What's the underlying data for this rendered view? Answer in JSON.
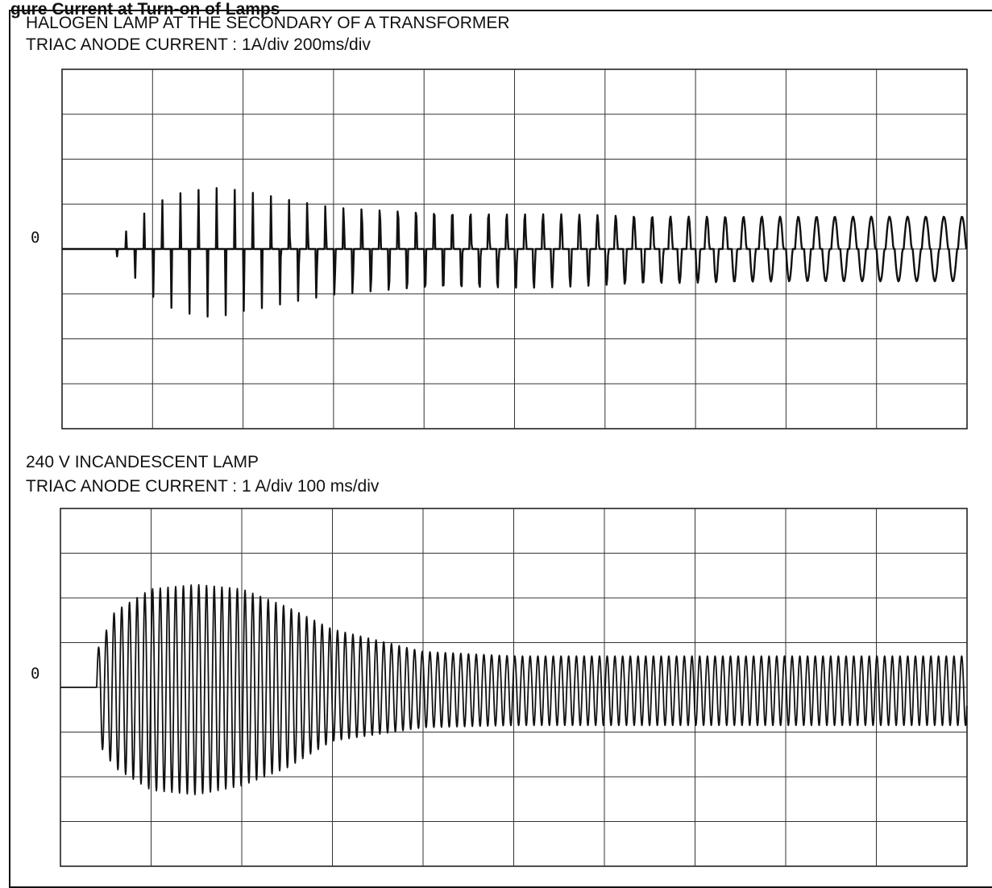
{
  "figure": {
    "heading_fragment": "gure  Current at Turn-on of Lamps"
  },
  "panels": [
    {
      "title_line1": "HALOGEN LAMP AT THE SECONDARY OF A TRANSFORMER",
      "title_line2": "TRIAC ANODE CURRENT : 1A/div 200ms/div",
      "zero_label": "0"
    },
    {
      "title_line1": "240 V INCANDESCENT LAMP",
      "title_line2": "TRIAC ANODE CURRENT : 1 A/div 100 ms/div",
      "zero_label": "0"
    }
  ],
  "chart_data": [
    {
      "type": "line",
      "title": "HALOGEN LAMP AT THE SECONDARY OF A TRANSFORMER",
      "subtitle": "TRIAC ANODE CURRENT : 1A/div 200ms/div",
      "xlabel": "",
      "ylabel": "",
      "x_unit": "ms",
      "y_unit": "A",
      "xlim": [
        0,
        2000
      ],
      "ylim": [
        -4,
        4
      ],
      "x_divisions": 10,
      "y_divisions": 8,
      "grid": true,
      "trace_start_ms": 60,
      "series": [
        {
          "name": "",
          "x": [
            0,
            90,
            200,
            300,
            400,
            500,
            600,
            800,
            1000,
            1200,
            1400,
            1600,
            1800,
            2000
          ],
          "peak_positive": [
            0,
            1.8,
            1.9,
            1.6,
            1.3,
            1.1,
            0.95,
            0.9,
            0.8,
            0.75,
            0.72,
            0.72,
            0.72,
            0.72
          ],
          "peak_negative": [
            0,
            -1.8,
            -2.1,
            -1.8,
            -1.4,
            -1.2,
            -1.05,
            -0.95,
            -0.9,
            -0.8,
            -0.75,
            -0.72,
            -0.72,
            -0.72
          ],
          "conduction_fraction": [
            0,
            0.08,
            0.1,
            0.12,
            0.15,
            0.18,
            0.2,
            0.24,
            0.28,
            0.35,
            0.5,
            0.7,
            0.85,
            0.9
          ],
          "cycle_period_ms": 40
        }
      ]
    },
    {
      "type": "line",
      "title": "240 V INCANDESCENT LAMP",
      "subtitle": "TRIAC ANODE CURRENT : 1 A/div 100 ms/div",
      "xlabel": "",
      "ylabel": "",
      "x_unit": "ms",
      "y_unit": "A",
      "xlim": [
        0,
        1000
      ],
      "ylim": [
        -4,
        4
      ],
      "x_divisions": 10,
      "y_divisions": 8,
      "grid": true,
      "trace_start_ms": 40,
      "series": [
        {
          "name": "",
          "x": [
            0,
            40,
            60,
            100,
            150,
            200,
            250,
            300,
            400,
            500,
            700,
            1000
          ],
          "peak_positive": [
            0,
            0.8,
            1.7,
            2.2,
            2.3,
            2.2,
            1.8,
            1.3,
            0.8,
            0.7,
            0.7,
            0.7
          ],
          "peak_negative": [
            0,
            -1.2,
            -1.8,
            -2.3,
            -2.4,
            -2.2,
            -1.8,
            -1.2,
            -0.9,
            -0.85,
            -0.85,
            -0.85
          ],
          "cycle_period_ms": 8.5
        }
      ]
    }
  ]
}
